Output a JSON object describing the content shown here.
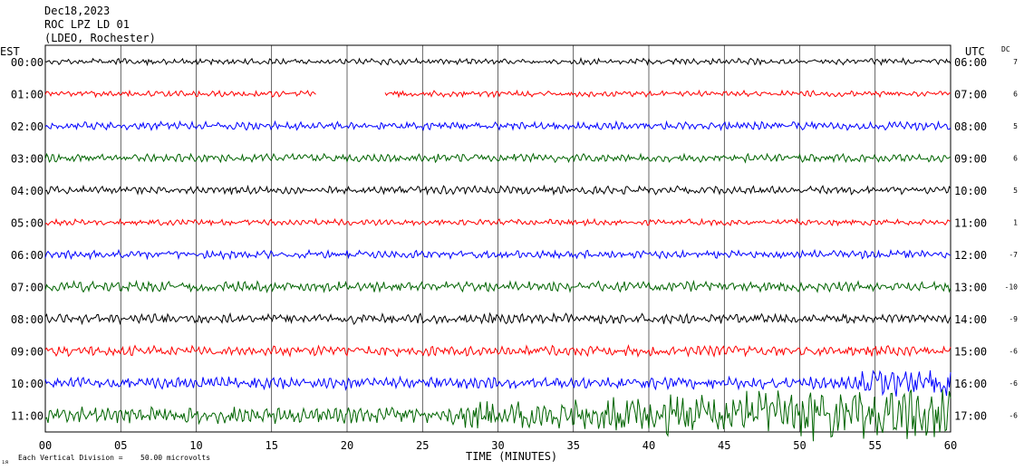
{
  "chart_data": {
    "type": "line",
    "title_lines": [
      "Dec18,2023",
      "ROC LPZ LD 01",
      "(LDEO, Rochester)"
    ],
    "left_tz": "EST",
    "right_tz": "UTC",
    "dc_header": "DC",
    "xlabel": "TIME (MINUTES)",
    "xlim": [
      0,
      60
    ],
    "x_ticks": [
      "00",
      "05",
      "10",
      "15",
      "20",
      "25",
      "30",
      "35",
      "40",
      "45",
      "50",
      "55",
      "60"
    ],
    "footnote_prefix": "Each Vertical Division =",
    "footnote_value": "50.00 microvolts",
    "corner_mark": "ıя",
    "rows": [
      {
        "est": "00:00",
        "utc": "06:00",
        "dc": "7",
        "color": "#000000",
        "amp": 3,
        "gap": null
      },
      {
        "est": "01:00",
        "utc": "07:00",
        "dc": "6",
        "color": "#ff0000",
        "amp": 3,
        "gap": [
          18.0,
          22.5
        ]
      },
      {
        "est": "02:00",
        "utc": "08:00",
        "dc": "5",
        "color": "#0000ff",
        "amp": 4,
        "gap": null
      },
      {
        "est": "03:00",
        "utc": "09:00",
        "dc": "6",
        "color": "#006400",
        "amp": 4,
        "gap": null
      },
      {
        "est": "04:00",
        "utc": "10:00",
        "dc": "5",
        "color": "#000000",
        "amp": 4,
        "gap": null
      },
      {
        "est": "05:00",
        "utc": "11:00",
        "dc": "1",
        "color": "#ff0000",
        "amp": 3,
        "gap": null
      },
      {
        "est": "06:00",
        "utc": "12:00",
        "dc": "-7",
        "color": "#0000ff",
        "amp": 4,
        "gap": null
      },
      {
        "est": "07:00",
        "utc": "13:00",
        "dc": "-10",
        "color": "#006400",
        "amp": 5,
        "gap": null
      },
      {
        "est": "08:00",
        "utc": "14:00",
        "dc": "-9",
        "color": "#000000",
        "amp": 5,
        "gap": null
      },
      {
        "est": "09:00",
        "utc": "15:00",
        "dc": "-6",
        "color": "#ff0000",
        "amp": 5,
        "gap": null
      },
      {
        "est": "10:00",
        "utc": "16:00",
        "dc": "-6",
        "color": "#0000ff",
        "amp": 6,
        "gap": null
      },
      {
        "est": "11:00",
        "utc": "17:00",
        "dc": "-6",
        "color": "#006400",
        "amp": 8,
        "gap": null
      }
    ]
  }
}
